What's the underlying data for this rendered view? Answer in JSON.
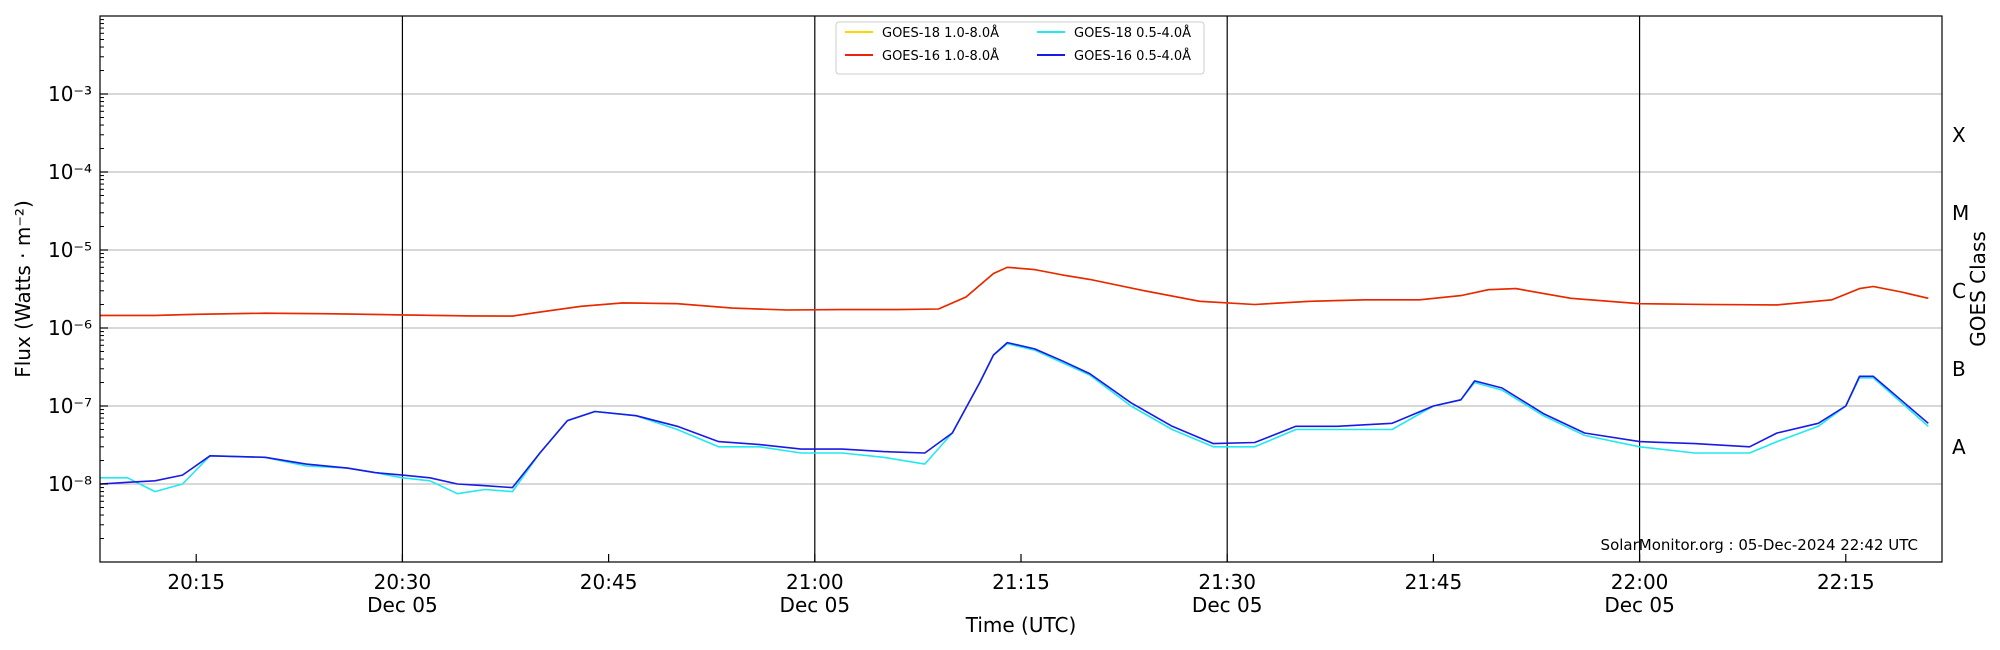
{
  "chart_data": {
    "type": "line",
    "title": "",
    "xlabel": "Time (UTC)",
    "ylabel": "Flux (Watts · m⁻²)",
    "ylabel_right": "GOES Class",
    "yscale": "log",
    "ylim": [
      1e-09,
      0.01
    ],
    "xlim": [
      "20:08",
      "22:22"
    ],
    "x_ticks": [
      {
        "time": "20:15",
        "label": "20:15",
        "sublabel": ""
      },
      {
        "time": "20:30",
        "label": "20:30",
        "sublabel": "Dec 05"
      },
      {
        "time": "20:45",
        "label": "20:45",
        "sublabel": ""
      },
      {
        "time": "21:00",
        "label": "21:00",
        "sublabel": "Dec 05"
      },
      {
        "time": "21:15",
        "label": "21:15",
        "sublabel": ""
      },
      {
        "time": "21:30",
        "label": "21:30",
        "sublabel": "Dec 05"
      },
      {
        "time": "21:45",
        "label": "21:45",
        "sublabel": ""
      },
      {
        "time": "22:00",
        "label": "22:00",
        "sublabel": "Dec 05"
      },
      {
        "time": "22:15",
        "label": "22:15",
        "sublabel": ""
      }
    ],
    "vlines": [
      "20:30",
      "21:00",
      "21:30",
      "22:00"
    ],
    "y_ticks": [
      {
        "value": 1e-08,
        "label": "10⁻⁸"
      },
      {
        "value": 1e-07,
        "label": "10⁻⁷"
      },
      {
        "value": 1e-06,
        "label": "10⁻⁶"
      },
      {
        "value": 1e-05,
        "label": "10⁻⁵"
      },
      {
        "value": 0.0001,
        "label": "10⁻⁴"
      },
      {
        "value": 0.001,
        "label": "10⁻³"
      }
    ],
    "class_labels": [
      {
        "label": "A",
        "value": 3e-08
      },
      {
        "label": "B",
        "value": 3e-07
      },
      {
        "label": "C",
        "value": 3e-06
      },
      {
        "label": "M",
        "value": 3e-05
      },
      {
        "label": "X",
        "value": 0.0003
      }
    ],
    "grid": "horizontal at decades",
    "legend_position": "top-center",
    "annotation": "SolarMonitor.org : 05-Dec-2024 22:42 UTC",
    "series": [
      {
        "name": "GOES-18 1.0-8.0Å",
        "color": "#ffd700",
        "points": [
          [
            "20:08",
            1.45e-06
          ],
          [
            "20:12",
            1.45e-06
          ],
          [
            "20:15",
            1.5e-06
          ],
          [
            "20:20",
            1.55e-06
          ],
          [
            "20:25",
            1.52e-06
          ],
          [
            "20:30",
            1.47e-06
          ],
          [
            "20:35",
            1.43e-06
          ],
          [
            "20:38",
            1.42e-06
          ],
          [
            "20:40",
            1.6e-06
          ],
          [
            "20:43",
            1.9e-06
          ],
          [
            "20:46",
            2.1e-06
          ],
          [
            "20:50",
            2.05e-06
          ],
          [
            "20:54",
            1.8e-06
          ],
          [
            "20:58",
            1.7e-06
          ],
          [
            "21:02",
            1.72e-06
          ],
          [
            "21:06",
            1.72e-06
          ],
          [
            "21:09",
            1.75e-06
          ],
          [
            "21:11",
            2.5e-06
          ],
          [
            "21:13",
            5e-06
          ],
          [
            "21:14",
            6e-06
          ],
          [
            "21:16",
            5.6e-06
          ],
          [
            "21:18",
            4.8e-06
          ],
          [
            "21:20",
            4.2e-06
          ],
          [
            "21:24",
            3e-06
          ],
          [
            "21:28",
            2.2e-06
          ],
          [
            "21:32",
            2e-06
          ],
          [
            "21:36",
            2.2e-06
          ],
          [
            "21:40",
            2.3e-06
          ],
          [
            "21:44",
            2.3e-06
          ],
          [
            "21:47",
            2.6e-06
          ],
          [
            "21:49",
            3.1e-06
          ],
          [
            "21:51",
            3.2e-06
          ],
          [
            "21:55",
            2.4e-06
          ],
          [
            "22:00",
            2.05e-06
          ],
          [
            "22:05",
            2e-06
          ],
          [
            "22:10",
            1.98e-06
          ],
          [
            "22:14",
            2.3e-06
          ],
          [
            "22:16",
            3.2e-06
          ],
          [
            "22:17",
            3.4e-06
          ],
          [
            "22:19",
            2.9e-06
          ],
          [
            "22:21",
            2.4e-06
          ]
        ]
      },
      {
        "name": "GOES-16 1.0-8.0Å",
        "color": "#e8250c",
        "points": [
          [
            "20:08",
            1.45e-06
          ],
          [
            "20:12",
            1.45e-06
          ],
          [
            "20:15",
            1.5e-06
          ],
          [
            "20:20",
            1.55e-06
          ],
          [
            "20:25",
            1.52e-06
          ],
          [
            "20:30",
            1.47e-06
          ],
          [
            "20:35",
            1.43e-06
          ],
          [
            "20:38",
            1.42e-06
          ],
          [
            "20:40",
            1.6e-06
          ],
          [
            "20:43",
            1.9e-06
          ],
          [
            "20:46",
            2.1e-06
          ],
          [
            "20:50",
            2.05e-06
          ],
          [
            "20:54",
            1.8e-06
          ],
          [
            "20:58",
            1.7e-06
          ],
          [
            "21:02",
            1.72e-06
          ],
          [
            "21:06",
            1.72e-06
          ],
          [
            "21:09",
            1.75e-06
          ],
          [
            "21:11",
            2.5e-06
          ],
          [
            "21:13",
            5e-06
          ],
          [
            "21:14",
            6e-06
          ],
          [
            "21:16",
            5.6e-06
          ],
          [
            "21:18",
            4.8e-06
          ],
          [
            "21:20",
            4.2e-06
          ],
          [
            "21:24",
            3e-06
          ],
          [
            "21:28",
            2.2e-06
          ],
          [
            "21:32",
            2e-06
          ],
          [
            "21:36",
            2.2e-06
          ],
          [
            "21:40",
            2.3e-06
          ],
          [
            "21:44",
            2.3e-06
          ],
          [
            "21:47",
            2.6e-06
          ],
          [
            "21:49",
            3.1e-06
          ],
          [
            "21:51",
            3.2e-06
          ],
          [
            "21:55",
            2.4e-06
          ],
          [
            "22:00",
            2.05e-06
          ],
          [
            "22:05",
            2e-06
          ],
          [
            "22:10",
            1.98e-06
          ],
          [
            "22:14",
            2.3e-06
          ],
          [
            "22:16",
            3.2e-06
          ],
          [
            "22:17",
            3.4e-06
          ],
          [
            "22:19",
            2.9e-06
          ],
          [
            "22:21",
            2.4e-06
          ]
        ]
      },
      {
        "name": "GOES-18 0.5-4.0Å",
        "color": "#22e8f0",
        "points": [
          [
            "20:08",
            1.2e-08
          ],
          [
            "20:10",
            1.2e-08
          ],
          [
            "20:12",
            8e-09
          ],
          [
            "20:14",
            1e-08
          ],
          [
            "20:16",
            2.3e-08
          ],
          [
            "20:20",
            2.2e-08
          ],
          [
            "20:23",
            1.7e-08
          ],
          [
            "20:26",
            1.6e-08
          ],
          [
            "20:28",
            1.4e-08
          ],
          [
            "20:30",
            1.2e-08
          ],
          [
            "20:32",
            1.1e-08
          ],
          [
            "20:34",
            7.5e-09
          ],
          [
            "20:36",
            8.5e-09
          ],
          [
            "20:38",
            8e-09
          ],
          [
            "20:40",
            2.5e-08
          ],
          [
            "20:42",
            6.5e-08
          ],
          [
            "20:44",
            8.5e-08
          ],
          [
            "20:47",
            7.5e-08
          ],
          [
            "20:50",
            5e-08
          ],
          [
            "20:53",
            3e-08
          ],
          [
            "20:56",
            3e-08
          ],
          [
            "20:59",
            2.5e-08
          ],
          [
            "21:02",
            2.5e-08
          ],
          [
            "21:05",
            2.2e-08
          ],
          [
            "21:08",
            1.8e-08
          ],
          [
            "21:10",
            4.5e-08
          ],
          [
            "21:12",
            2e-07
          ],
          [
            "21:13",
            4.5e-07
          ],
          [
            "21:14",
            6.3e-07
          ],
          [
            "21:16",
            5.2e-07
          ],
          [
            "21:18",
            3.6e-07
          ],
          [
            "21:20",
            2.5e-07
          ],
          [
            "21:23",
            1e-07
          ],
          [
            "21:26",
            5e-08
          ],
          [
            "21:29",
            3e-08
          ],
          [
            "21:32",
            3e-08
          ],
          [
            "21:35",
            5e-08
          ],
          [
            "21:38",
            5e-08
          ],
          [
            "21:42",
            5e-08
          ],
          [
            "21:45",
            1e-07
          ],
          [
            "21:47",
            1.2e-07
          ],
          [
            "21:48",
            2e-07
          ],
          [
            "21:50",
            1.6e-07
          ],
          [
            "21:53",
            7.5e-08
          ],
          [
            "21:56",
            4.2e-08
          ],
          [
            "22:00",
            3e-08
          ],
          [
            "22:04",
            2.5e-08
          ],
          [
            "22:08",
            2.5e-08
          ],
          [
            "22:10",
            3.5e-08
          ],
          [
            "22:13",
            5.5e-08
          ],
          [
            "22:15",
            1e-07
          ],
          [
            "22:16",
            2.3e-07
          ],
          [
            "22:17",
            2.3e-07
          ],
          [
            "22:21",
            5.5e-08
          ]
        ]
      },
      {
        "name": "GOES-16 0.5-4.0Å",
        "color": "#1a1ae6",
        "points": [
          [
            "20:08",
            1e-08
          ],
          [
            "20:10",
            1.05e-08
          ],
          [
            "20:12",
            1.1e-08
          ],
          [
            "20:14",
            1.3e-08
          ],
          [
            "20:16",
            2.3e-08
          ],
          [
            "20:20",
            2.2e-08
          ],
          [
            "20:23",
            1.8e-08
          ],
          [
            "20:26",
            1.6e-08
          ],
          [
            "20:28",
            1.4e-08
          ],
          [
            "20:30",
            1.3e-08
          ],
          [
            "20:32",
            1.2e-08
          ],
          [
            "20:34",
            1e-08
          ],
          [
            "20:36",
            9.5e-09
          ],
          [
            "20:38",
            9e-09
          ],
          [
            "20:40",
            2.5e-08
          ],
          [
            "20:42",
            6.5e-08
          ],
          [
            "20:44",
            8.5e-08
          ],
          [
            "20:47",
            7.5e-08
          ],
          [
            "20:50",
            5.5e-08
          ],
          [
            "20:53",
            3.5e-08
          ],
          [
            "20:56",
            3.2e-08
          ],
          [
            "20:59",
            2.8e-08
          ],
          [
            "21:02",
            2.8e-08
          ],
          [
            "21:05",
            2.6e-08
          ],
          [
            "21:08",
            2.5e-08
          ],
          [
            "21:10",
            4.5e-08
          ],
          [
            "21:12",
            2e-07
          ],
          [
            "21:13",
            4.5e-07
          ],
          [
            "21:14",
            6.5e-07
          ],
          [
            "21:16",
            5.4e-07
          ],
          [
            "21:18",
            3.8e-07
          ],
          [
            "21:20",
            2.6e-07
          ],
          [
            "21:23",
            1.1e-07
          ],
          [
            "21:26",
            5.5e-08
          ],
          [
            "21:29",
            3.3e-08
          ],
          [
            "21:32",
            3.4e-08
          ],
          [
            "21:35",
            5.5e-08
          ],
          [
            "21:38",
            5.5e-08
          ],
          [
            "21:42",
            6e-08
          ],
          [
            "21:45",
            1e-07
          ],
          [
            "21:47",
            1.2e-07
          ],
          [
            "21:48",
            2.1e-07
          ],
          [
            "21:50",
            1.7e-07
          ],
          [
            "21:53",
            8e-08
          ],
          [
            "21:56",
            4.5e-08
          ],
          [
            "22:00",
            3.5e-08
          ],
          [
            "22:04",
            3.3e-08
          ],
          [
            "22:08",
            3e-08
          ],
          [
            "22:10",
            4.5e-08
          ],
          [
            "22:13",
            6e-08
          ],
          [
            "22:15",
            1e-07
          ],
          [
            "22:16",
            2.4e-07
          ],
          [
            "22:17",
            2.4e-07
          ],
          [
            "22:21",
            6e-08
          ]
        ]
      }
    ]
  }
}
